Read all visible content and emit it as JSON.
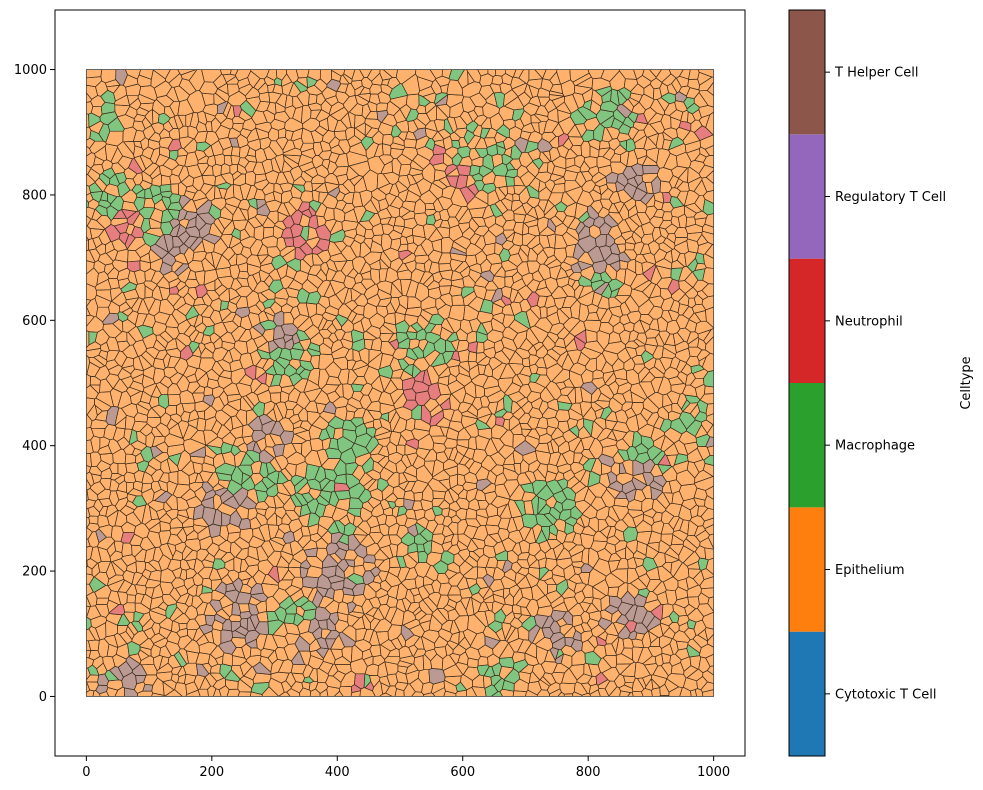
{
  "chart_data": {
    "type": "voronoi-scatter",
    "title": "",
    "xlabel": "",
    "ylabel": "",
    "xlim": [
      -50,
      1050
    ],
    "ylim": [
      -95,
      1095
    ],
    "xticks": [
      0,
      200,
      400,
      600,
      800,
      1000
    ],
    "yticks": [
      0,
      200,
      400,
      600,
      800,
      1000
    ],
    "tissue_extent": {
      "x": [
        0,
        1000
      ],
      "y": [
        0,
        1000
      ]
    },
    "grid": false,
    "colorbar": {
      "title": "Celltype",
      "placement": "right",
      "categories": [
        {
          "name": "Cytotoxic T Cell",
          "color": "#1f77b4"
        },
        {
          "name": "Epithelium",
          "color": "#ff7f0e"
        },
        {
          "name": "Macrophage",
          "color": "#2ca02c"
        },
        {
          "name": "Neutrophil",
          "color": "#d62728"
        },
        {
          "name": "Regulatory T Cell",
          "color": "#9467bd"
        },
        {
          "name": "T Helper Cell",
          "color": "#8c564b"
        }
      ]
    },
    "clusters": [
      {
        "celltype": "T Helper Cell",
        "center": [
          240,
          130
        ],
        "radius": 55
      },
      {
        "celltype": "T Helper Cell",
        "center": [
          220,
          300
        ],
        "radius": 45
      },
      {
        "celltype": "T Helper Cell",
        "center": [
          280,
          390
        ],
        "radius": 50
      },
      {
        "celltype": "Macrophage",
        "center": [
          260,
          370
        ],
        "radius": 60
      },
      {
        "celltype": "T Helper Cell",
        "center": [
          400,
          200
        ],
        "radius": 60
      },
      {
        "celltype": "Macrophage",
        "center": [
          390,
          320
        ],
        "radius": 60
      },
      {
        "celltype": "Macrophage",
        "center": [
          420,
          400
        ],
        "radius": 45
      },
      {
        "celltype": "T Helper Cell",
        "center": [
          380,
          120
        ],
        "radius": 55
      },
      {
        "celltype": "Macrophage",
        "center": [
          330,
          130
        ],
        "radius": 40
      },
      {
        "celltype": "Macrophage",
        "center": [
          540,
          230
        ],
        "radius": 40
      },
      {
        "celltype": "Neutrophil",
        "center": [
          540,
          480
        ],
        "radius": 40
      },
      {
        "celltype": "Macrophage",
        "center": [
          540,
          560
        ],
        "radius": 50
      },
      {
        "celltype": "T Helper Cell",
        "center": [
          310,
          570
        ],
        "radius": 40
      },
      {
        "celltype": "Macrophage",
        "center": [
          320,
          540
        ],
        "radius": 50
      },
      {
        "celltype": "T Helper Cell",
        "center": [
          150,
          740
        ],
        "radius": 60
      },
      {
        "celltype": "Macrophage",
        "center": [
          120,
          760
        ],
        "radius": 55
      },
      {
        "celltype": "Neutrophil",
        "center": [
          80,
          740
        ],
        "radius": 40
      },
      {
        "celltype": "Neutrophil",
        "center": [
          350,
          740
        ],
        "radius": 40
      },
      {
        "celltype": "Macrophage",
        "center": [
          640,
          860
        ],
        "radius": 55
      },
      {
        "celltype": "Neutrophil",
        "center": [
          600,
          830
        ],
        "radius": 30
      },
      {
        "celltype": "T Helper Cell",
        "center": [
          820,
          720
        ],
        "radius": 45
      },
      {
        "celltype": "Macrophage",
        "center": [
          820,
          650
        ],
        "radius": 30
      },
      {
        "celltype": "Macrophage",
        "center": [
          740,
          300
        ],
        "radius": 50
      },
      {
        "celltype": "T Helper Cell",
        "center": [
          750,
          90
        ],
        "radius": 40
      },
      {
        "celltype": "Macrophage",
        "center": [
          960,
          430
        ],
        "radius": 40
      },
      {
        "celltype": "T Helper Cell",
        "center": [
          880,
          350
        ],
        "radius": 45
      },
      {
        "celltype": "Macrophage",
        "center": [
          880,
          380
        ],
        "radius": 40
      },
      {
        "celltype": "T Helper Cell",
        "center": [
          870,
          130
        ],
        "radius": 40
      },
      {
        "celltype": "T Helper Cell",
        "center": [
          60,
          30
        ],
        "radius": 40
      },
      {
        "celltype": "Macrophage",
        "center": [
          30,
          930
        ],
        "radius": 35
      },
      {
        "celltype": "Macrophage",
        "center": [
          830,
          930
        ],
        "radius": 45
      },
      {
        "celltype": "T Helper Cell",
        "center": [
          870,
          820
        ],
        "radius": 40
      },
      {
        "celltype": "Neutrophil",
        "center": [
          430,
          20
        ],
        "radius": 30
      },
      {
        "celltype": "Macrophage",
        "center": [
          660,
          30
        ],
        "radius": 40
      },
      {
        "celltype": "Macrophage",
        "center": [
          960,
          690
        ],
        "radius": 30
      },
      {
        "celltype": "Macrophage",
        "center": [
          40,
          800
        ],
        "radius": 35
      }
    ]
  }
}
